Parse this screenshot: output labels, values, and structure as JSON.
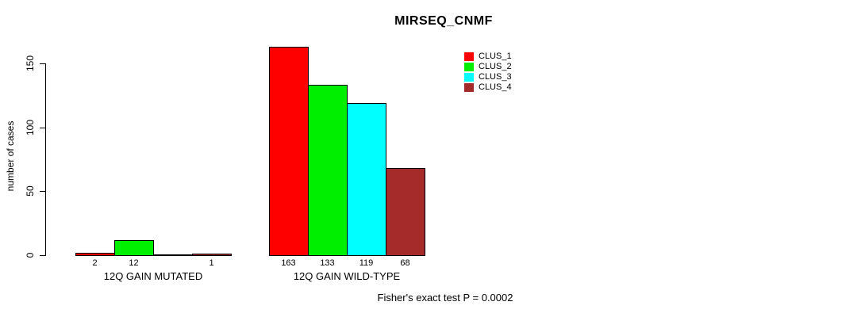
{
  "title": "MIRSEQ_CNMF",
  "footer": "Fisher's exact test P = 0.0002",
  "chart_data": {
    "type": "bar",
    "grouped": true,
    "title": "MIRSEQ_CNMF",
    "xlabel": "",
    "ylabel": "number of cases",
    "categories": [
      "12Q GAIN MUTATED",
      "12Q GAIN WILD-TYPE"
    ],
    "series": [
      {
        "name": "CLUS_1",
        "color": "#ff0000",
        "values": [
          2,
          163
        ]
      },
      {
        "name": "CLUS_2",
        "color": "#00ee00",
        "values": [
          12,
          133
        ]
      },
      {
        "name": "CLUS_3",
        "color": "#00ffff",
        "values": [
          0,
          119
        ]
      },
      {
        "name": "CLUS_4",
        "color": "#a52a2a",
        "values": [
          1,
          68
        ]
      }
    ],
    "bar_labels_shown": [
      [
        "2",
        "12",
        "",
        "1"
      ],
      [
        "163",
        "133",
        "119",
        "68"
      ]
    ],
    "yticks": [
      0,
      50,
      100,
      150
    ],
    "ylim": [
      0,
      163
    ],
    "grid": false,
    "legend_position": "top-right",
    "legend_entries": [
      "CLUS_1",
      "CLUS_2",
      "CLUS_3",
      "CLUS_4"
    ],
    "annotation": "Fisher's exact test P = 0.0002"
  }
}
